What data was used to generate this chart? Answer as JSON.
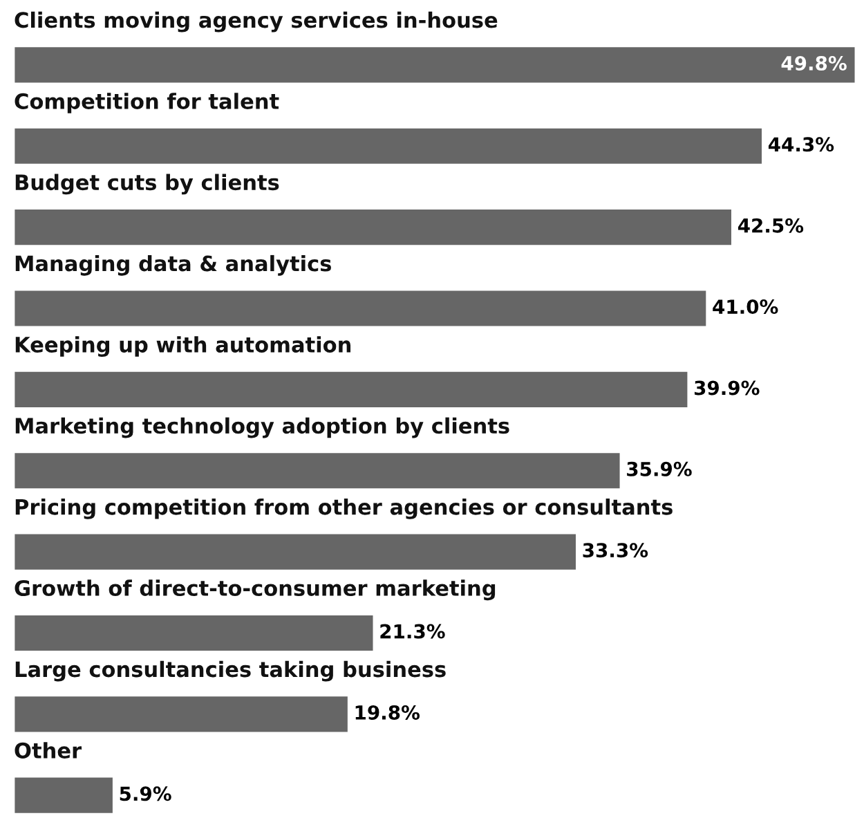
{
  "chart_data": {
    "type": "bar",
    "orientation": "horizontal",
    "categories": [
      "Clients moving agency services in-house",
      "Competition for talent",
      "Budget cuts by clients",
      "Managing data & analytics",
      "Keeping up with automation",
      "Marketing technology adoption by clients",
      "Pricing competition from other agencies or consultants",
      "Growth of direct-to-consumer marketing",
      "Large consultancies taking business",
      "Other"
    ],
    "values": [
      49.8,
      44.3,
      42.5,
      41.0,
      39.9,
      35.9,
      33.3,
      21.3,
      19.8,
      5.9
    ],
    "value_labels": [
      "49.8%",
      "44.3%",
      "42.5%",
      "41.0%",
      "39.9%",
      "35.9%",
      "33.3%",
      "21.3%",
      "19.8%",
      "5.9%"
    ],
    "color": "#666666"
  }
}
